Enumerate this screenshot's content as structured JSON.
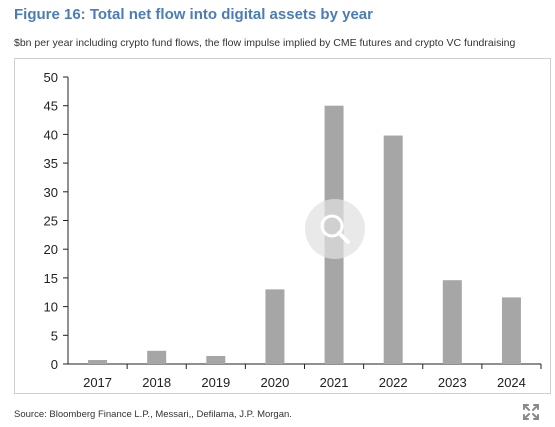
{
  "header": {
    "title": "Figure 16: Total net flow into digital assets by year",
    "subtitle": "$bn per year including crypto fund flows, the flow impulse implied by CME futures and crypto VC fundraising"
  },
  "footer": {
    "source": "Source: Bloomberg Finance L.P., Messari,, Defilama, J.P. Morgan."
  },
  "icons": {
    "zoom": "magnifier-icon",
    "expand": "expand-icon"
  },
  "colors": {
    "title": "#4a7db8",
    "bar": "#a6a6a6",
    "axis": "#222222",
    "overlay": "#e1e1e1"
  },
  "chart_data": {
    "type": "bar",
    "categories": [
      "2017",
      "2018",
      "2019",
      "2020",
      "2021",
      "2022",
      "2023",
      "2024"
    ],
    "values": [
      0.7,
      2.3,
      1.4,
      13.0,
      45.0,
      39.8,
      14.6,
      11.6
    ],
    "title": "Figure 16: Total net flow into digital assets by year",
    "subtitle": "$bn per year including crypto fund flows, the flow impulse implied by CME futures and crypto VC fundraising",
    "xlabel": "",
    "ylabel": "",
    "ylim": [
      0,
      50
    ],
    "yticks": [
      0,
      5,
      10,
      15,
      20,
      25,
      30,
      35,
      40,
      45,
      50
    ],
    "grid": false,
    "legend": "none"
  }
}
